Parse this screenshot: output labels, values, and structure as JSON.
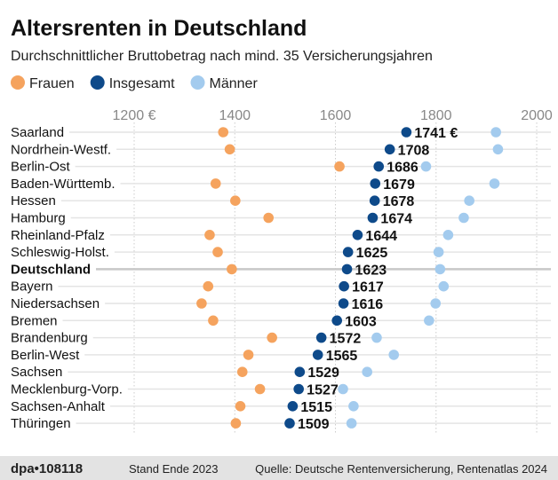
{
  "chart_data": {
    "type": "scatter",
    "title": "Altersrenten in Deutschland",
    "subtitle": "Durchschnittlicher Bruttobetrag nach mind. 35 Versicherungsjahren",
    "xlim": [
      1150,
      2020
    ],
    "x_ticks": [
      "1200 €",
      "1400",
      "1600",
      "1800",
      "2000"
    ],
    "x_tick_values": [
      1200,
      1400,
      1600,
      1800,
      2000
    ],
    "grid": "vertical dotted",
    "legend_placement": "top-left",
    "categories": [
      "Saarland",
      "Nordrhein-Westf.",
      "Berlin-Ost",
      "Baden-Württemb.",
      "Hessen",
      "Hamburg",
      "Rheinland-Pfalz",
      "Schleswig-Holst.",
      "Deutschland",
      "Bayern",
      "Niedersachsen",
      "Bremen",
      "Brandenburg",
      "Berlin-West",
      "Sachsen",
      "Mecklenburg-Vorp.",
      "Sachsen-Anhalt",
      "Thüringen"
    ],
    "highlight_category": "Deutschland",
    "series": [
      {
        "name": "Frauen",
        "color": "#f5a35e",
        "values": [
          1377,
          1390,
          1608,
          1362,
          1401,
          1467,
          1350,
          1366,
          1394,
          1347,
          1334,
          1357,
          1474,
          1427,
          1415,
          1450,
          1411,
          1402
        ]
      },
      {
        "name": "Insgesamt",
        "color": "#0e4a8a",
        "values": [
          1741,
          1708,
          1686,
          1679,
          1678,
          1674,
          1644,
          1625,
          1623,
          1617,
          1616,
          1603,
          1572,
          1565,
          1529,
          1527,
          1515,
          1509
        ],
        "labels": [
          "1741 €",
          "1708",
          "1686",
          "1679",
          "1678",
          "1674",
          "1644",
          "1625",
          "1623",
          "1617",
          "1616",
          "1603",
          "1572",
          "1565",
          "1529",
          "1527",
          "1515",
          "1509"
        ]
      },
      {
        "name": "Männer",
        "color": "#a3cbee",
        "values": [
          1919,
          1923,
          1780,
          1916,
          1866,
          1855,
          1824,
          1805,
          1808,
          1815,
          1799,
          1786,
          1682,
          1716,
          1663,
          1615,
          1636,
          1632
        ]
      }
    ]
  },
  "footer": {
    "logo": "dpa•108118",
    "date": "Stand Ende 2023",
    "source": "Quelle: Deutsche Rentenversicherung, Rentenatlas 2024"
  }
}
